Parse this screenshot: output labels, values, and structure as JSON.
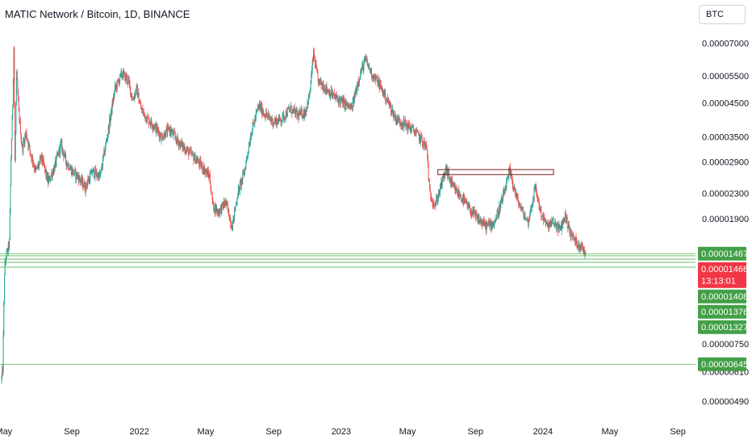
{
  "header": {
    "title": "MATIC Network / Bitcoin, 1D, BINANCE",
    "currency": "BTC"
  },
  "colors": {
    "up": "#26a69a",
    "down": "#ef5350",
    "level_line": "#4caf50",
    "badge_green": "#43a047",
    "badge_red": "#f23645",
    "rect_stroke": "#7a1e1e"
  },
  "chart_data": {
    "type": "line",
    "title": "MATIC Network / Bitcoin, 1D, BINANCE",
    "xlabel": "",
    "ylabel": "",
    "y_scale": "log",
    "ylim": [
      4.4e-06,
      7.6e-05
    ],
    "xlim": [
      "2021-04-24",
      "2024-09-30"
    ],
    "grid": false,
    "legend": "none",
    "y_ticks": [
      "0.00007000",
      "0.00005500",
      "0.00004500",
      "0.00003500",
      "0.00002900",
      "0.00002300",
      "0.00001900",
      "0.00000750",
      "0.00000610",
      "0.00000490"
    ],
    "x_ticks": [
      {
        "date": "2021-05-01",
        "label": "May"
      },
      {
        "date": "2021-09-01",
        "label": "Sep"
      },
      {
        "date": "2022-01-01",
        "label": "2022"
      },
      {
        "date": "2022-05-01",
        "label": "May"
      },
      {
        "date": "2022-09-01",
        "label": "Sep"
      },
      {
        "date": "2023-01-01",
        "label": "2023"
      },
      {
        "date": "2023-05-01",
        "label": "May"
      },
      {
        "date": "2023-09-01",
        "label": "Sep"
      },
      {
        "date": "2024-01-01",
        "label": "2024"
      },
      {
        "date": "2024-05-01",
        "label": "May"
      },
      {
        "date": "2024-09-01",
        "label": "Sep"
      }
    ],
    "series": [
      {
        "x": [
          "2021-04-26",
          "2021-04-29",
          "2021-05-02",
          "2021-05-05",
          "2021-05-08",
          "2021-05-11",
          "2021-05-14",
          "2021-05-17",
          "2021-05-19",
          "2021-05-21",
          "2021-05-24",
          "2021-05-28",
          "2021-06-03",
          "2021-06-10",
          "2021-06-18",
          "2021-06-28",
          "2021-07-08",
          "2021-07-20",
          "2021-08-01",
          "2021-08-12",
          "2021-08-22",
          "2021-09-02",
          "2021-09-12",
          "2021-09-25",
          "2021-10-08",
          "2021-10-22",
          "2021-11-05",
          "2021-11-18",
          "2021-12-01",
          "2021-12-12",
          "2021-12-20",
          "2021-12-27",
          "2022-01-04",
          "2022-01-15",
          "2022-01-28",
          "2022-02-10",
          "2022-02-25",
          "2022-03-10",
          "2022-03-25",
          "2022-04-10",
          "2022-04-25",
          "2022-05-08",
          "2022-05-14",
          "2022-05-24",
          "2022-06-06",
          "2022-06-18",
          "2022-06-28",
          "2022-07-10",
          "2022-07-22",
          "2022-08-05",
          "2022-08-18",
          "2022-09-01",
          "2022-09-15",
          "2022-10-01",
          "2022-10-15",
          "2022-10-28",
          "2022-11-05",
          "2022-11-12",
          "2022-11-20",
          "2022-12-05",
          "2022-12-20",
          "2023-01-05",
          "2023-01-20",
          "2023-02-03",
          "2023-02-14",
          "2023-02-25",
          "2023-03-10",
          "2023-03-25",
          "2023-04-10",
          "2023-04-25",
          "2023-05-10",
          "2023-05-25",
          "2023-06-05",
          "2023-06-10",
          "2023-06-20",
          "2023-07-01",
          "2023-07-10",
          "2023-07-22",
          "2023-08-05",
          "2023-08-20",
          "2023-09-05",
          "2023-09-20",
          "2023-10-05",
          "2023-10-20",
          "2023-11-02",
          "2023-11-15",
          "2023-11-25",
          "2023-12-05",
          "2023-12-18",
          "2023-12-28",
          "2024-01-08",
          "2024-01-20",
          "2024-02-01",
          "2024-02-10",
          "2024-02-20",
          "2024-03-01",
          "2024-03-10",
          "2024-03-18"
        ],
        "values": [
          5.7e-06,
          6.2e-06,
          1.28e-05,
          1.45e-05,
          1.5e-05,
          1.6e-05,
          3e-05,
          4.5e-05,
          6.8e-05,
          2.9e-05,
          5.5e-05,
          4.2e-05,
          3.2e-05,
          3.6e-05,
          3.1e-05,
          2.7e-05,
          3e-05,
          2.5e-05,
          2.8e-05,
          3.3e-05,
          2.9e-05,
          2.7e-05,
          2.6e-05,
          2.4e-05,
          2.7e-05,
          2.6e-05,
          3.6e-05,
          5e-05,
          5.6e-05,
          5.3e-05,
          4.6e-05,
          5e-05,
          4.3e-05,
          4e-05,
          3.8e-05,
          3.5e-05,
          3.7e-05,
          3.4e-05,
          3.2e-05,
          3e-05,
          2.8e-05,
          2.6e-05,
          2.1e-05,
          2e-05,
          2.15e-05,
          1.8e-05,
          2.3e-05,
          2.7e-05,
          3.6e-05,
          4.4e-05,
          4.1e-05,
          3.9e-05,
          4e-05,
          4.3e-05,
          4.1e-05,
          4.2e-05,
          4.8e-05,
          6.5e-05,
          5.3e-05,
          5e-05,
          4.7e-05,
          4.5e-05,
          4.3e-05,
          5.5e-05,
          6.2e-05,
          5.6e-05,
          5.2e-05,
          4.6e-05,
          4e-05,
          3.85e-05,
          3.7e-05,
          3.45e-05,
          3.2e-05,
          2.3e-05,
          2.1e-05,
          2.45e-05,
          2.75e-05,
          2.4e-05,
          2.25e-05,
          2.05e-05,
          1.9e-05,
          1.8e-05,
          1.85e-05,
          2.2e-05,
          2.7e-05,
          2.2e-05,
          2e-05,
          1.85e-05,
          2.4e-05,
          2e-05,
          1.8e-05,
          1.85e-05,
          1.75e-05,
          1.95e-05,
          1.7e-05,
          1.6e-05,
          1.55e-05,
          1.466e-05
        ]
      }
    ],
    "annotations": {
      "rectangle": {
        "x_start": "2023-06-25",
        "x_end": "2024-01-20",
        "y_top": 2.74e-05,
        "y_bottom": 2.64e-05
      },
      "levels": [
        1.467e-05,
        1.444e-05,
        1.408e-05,
        1.376e-05,
        1.327e-05,
        6.45e-06
      ]
    },
    "price_badges": [
      {
        "value": "0.00001467",
        "kind": "green"
      },
      {
        "value": "0.00001466",
        "kind": "red",
        "countdown": "13:13:01"
      },
      {
        "value": "0.00001408",
        "kind": "green"
      },
      {
        "value": "0.00001376",
        "kind": "green"
      },
      {
        "value": "0.00001327",
        "kind": "green"
      },
      {
        "value": "0.00000645",
        "kind": "green"
      }
    ]
  }
}
